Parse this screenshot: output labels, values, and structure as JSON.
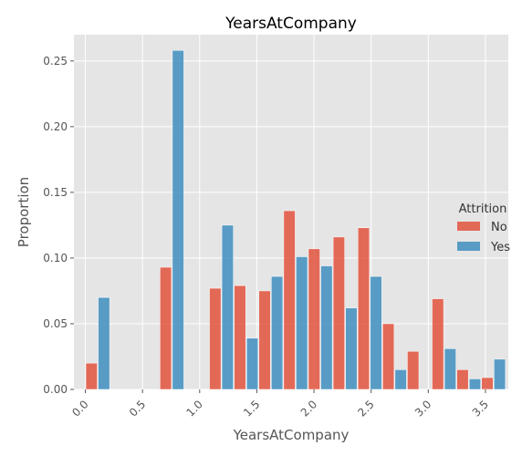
{
  "chart_data": {
    "type": "bar",
    "title": "YearsAtCompany",
    "xlabel": "YearsAtCompany",
    "ylabel": "Proportion",
    "xlim": [
      -0.1,
      3.7
    ],
    "ylim": [
      0,
      0.27
    ],
    "grid": true,
    "x_ticks": [
      0.0,
      0.5,
      1.0,
      1.5,
      2.0,
      2.5,
      3.0,
      3.5
    ],
    "x_tick_labels": [
      "0.0",
      "0.5",
      "1.0",
      "1.5",
      "2.0",
      "2.5",
      "3.0",
      "3.5"
    ],
    "y_ticks": [
      0.0,
      0.05,
      0.1,
      0.15,
      0.2,
      0.25
    ],
    "y_tick_labels": [
      "0.00",
      "0.05",
      "0.10",
      "0.15",
      "0.20",
      "0.25"
    ],
    "bin_edges": [
      0.0,
      0.2164,
      0.4328,
      0.6492,
      0.8656,
      1.082,
      1.2984,
      1.5148,
      1.7312,
      1.9476,
      2.164,
      2.3804,
      2.5968,
      2.8132,
      3.0296,
      3.246,
      3.4624,
      3.6788
    ],
    "legend": {
      "title": "Attrition",
      "position": "center-right"
    },
    "series": [
      {
        "name": "No",
        "color": "#e24a33",
        "values": [
          0.02,
          0.0,
          0.0,
          0.093,
          0.0,
          0.077,
          0.079,
          0.075,
          0.136,
          0.107,
          0.116,
          0.123,
          0.05,
          0.029,
          0.069,
          0.015,
          0.009
        ]
      },
      {
        "name": "Yes",
        "color": "#348abd",
        "values": [
          0.07,
          0.0,
          0.0,
          0.258,
          0.0,
          0.125,
          0.039,
          0.086,
          0.101,
          0.094,
          0.062,
          0.086,
          0.015,
          0.0,
          0.031,
          0.008,
          0.023
        ]
      }
    ]
  }
}
